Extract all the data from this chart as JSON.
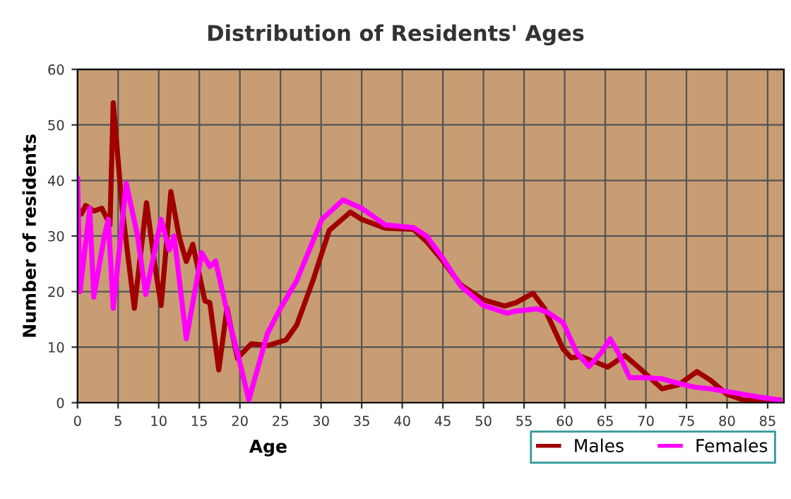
{
  "chart_data": {
    "type": "line",
    "title": "Distribution of Residents' Ages",
    "xlabel": "Age",
    "ylabel": "Number of residents",
    "xlim": [
      0,
      87
    ],
    "xticks": [
      0,
      5,
      10,
      15,
      20,
      25,
      30,
      35,
      40,
      45,
      50,
      55,
      60,
      65,
      70,
      75,
      80,
      85
    ],
    "ylim": [
      0,
      60
    ],
    "yticks": [
      0,
      10,
      20,
      30,
      40,
      50,
      60
    ],
    "grid": true,
    "legend": "bottom right",
    "series": [
      {
        "name": "Males",
        "color": "#a00000",
        "x": [
          0,
          0.5,
          1,
          2,
          3,
          4,
          4.4,
          5.5,
          7,
          8.5,
          9.5,
          10.3,
          11.5,
          12.5,
          13.4,
          14.2,
          15.7,
          16.3,
          17.4,
          18.4,
          19.7,
          21.4,
          23.5,
          25.7,
          27,
          29,
          31,
          33.6,
          35,
          37.9,
          41.4,
          43,
          45,
          47.2,
          50,
          52.6,
          54,
          56.1,
          57.5,
          59.8,
          60.8,
          62,
          63.5,
          65.3,
          67.4,
          69,
          72,
          74,
          76.3,
          78,
          80,
          82,
          84,
          86.5
        ],
        "values": [
          35,
          34,
          35.5,
          34.5,
          35,
          32,
          54,
          35,
          17,
          36,
          25,
          17.5,
          38,
          30,
          25.4,
          28.5,
          18.3,
          18,
          5.9,
          17,
          8,
          10.6,
          10.3,
          11.3,
          14,
          22,
          31,
          34.3,
          33,
          31.4,
          31.2,
          29,
          25.5,
          21.2,
          18.5,
          17.4,
          18,
          19.7,
          17,
          9.7,
          8.1,
          8.3,
          7.5,
          6.4,
          8.5,
          6.5,
          2.5,
          3.2,
          5.6,
          4,
          1.5,
          0.5,
          0.3,
          0.5
        ]
      },
      {
        "name": "Females",
        "color": "#ff00ff",
        "x": [
          0,
          0.3,
          1.5,
          2,
          3.3,
          3.8,
          4.4,
          6,
          7.4,
          8.4,
          10.3,
          11.3,
          11.9,
          13.4,
          15.3,
          16.3,
          17,
          18.8,
          20.2,
          21.1,
          23.4,
          25,
          27,
          30.1,
          32.7,
          35,
          37.9,
          41.4,
          43,
          45,
          47.2,
          50,
          52.9,
          54,
          56.6,
          58,
          59.8,
          61.5,
          63,
          64.5,
          65.6,
          66.6,
          68,
          70,
          72,
          74,
          76,
          78,
          80,
          82,
          84,
          86.5
        ],
        "values": [
          40.5,
          20,
          35,
          19,
          30,
          33,
          17,
          39.5,
          30,
          19.5,
          33,
          27.5,
          30,
          11.5,
          27,
          24.5,
          25.5,
          14,
          6,
          0.5,
          12.5,
          17,
          22,
          33,
          36.5,
          35,
          32,
          31.5,
          30,
          26,
          21,
          17.5,
          16.1,
          16.5,
          16.9,
          16.2,
          14.4,
          9,
          6.5,
          9,
          11.5,
          9,
          4.5,
          4.5,
          4.3,
          3.5,
          2.8,
          2.5,
          2,
          1.5,
          1,
          0.5
        ]
      }
    ]
  }
}
